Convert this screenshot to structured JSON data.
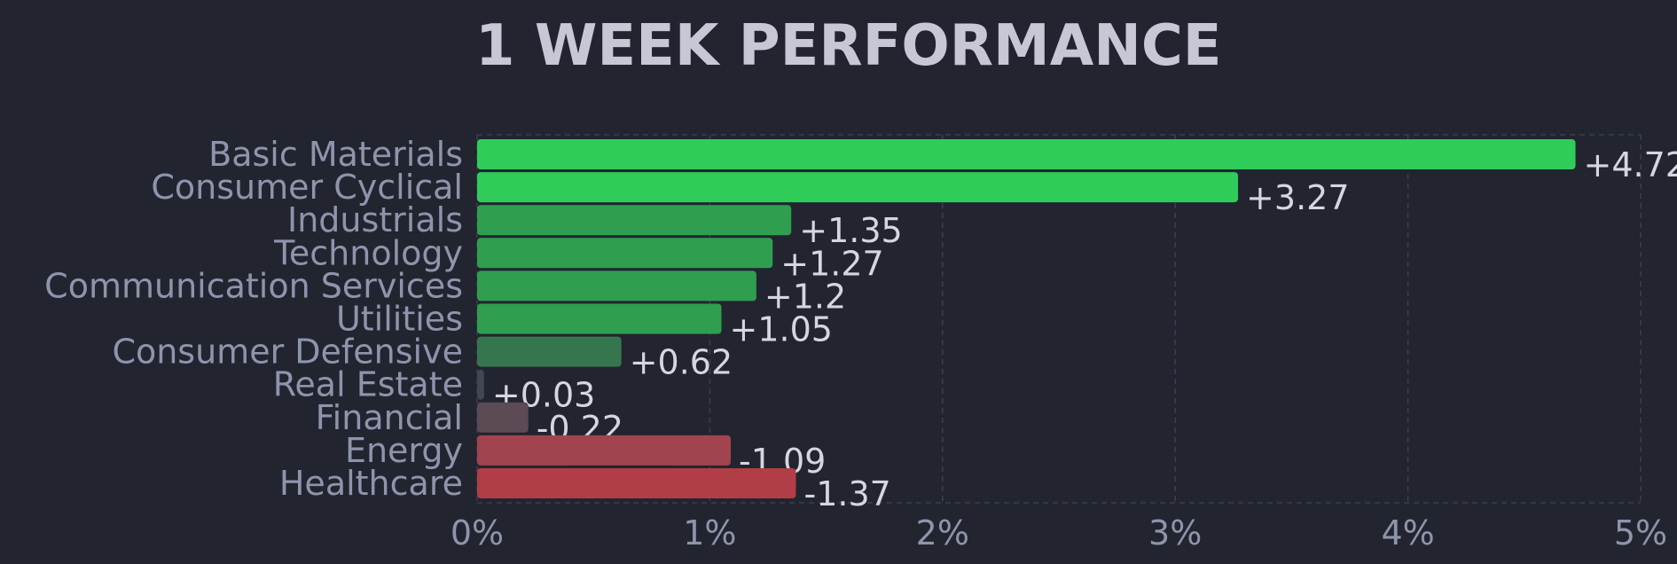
{
  "chart_data": {
    "type": "bar",
    "orientation": "horizontal",
    "title": "1 WEEK PERFORMANCE",
    "categories": [
      "Basic Materials",
      "Consumer Cyclical",
      "Industrials",
      "Technology",
      "Communication Services",
      "Utilities",
      "Consumer Defensive",
      "Real Estate",
      "Financial",
      "Energy",
      "Healthcare"
    ],
    "values": [
      4.72,
      3.27,
      1.35,
      1.27,
      1.2,
      1.05,
      0.62,
      0.03,
      -0.22,
      -1.09,
      -1.37
    ],
    "value_labels": [
      "+4.72",
      "+3.27",
      "+1.35",
      "+1.27",
      "+1.2",
      "+1.05",
      "+0.62",
      "+0.03",
      "-0.22",
      "-1.09",
      "-1.37"
    ],
    "bar_colors": [
      "#30cc5a",
      "#30cc5a",
      "#2f9e4f",
      "#2f9e4f",
      "#2f9e4f",
      "#2f9e4f",
      "#35764e",
      "#414554",
      "#5c4a55",
      "#a1444f",
      "#b13d46"
    ],
    "xlim": [
      0,
      5
    ],
    "xticks": [
      "0%",
      "1%",
      "2%",
      "3%",
      "4%",
      "5%"
    ],
    "bar_length": "absolute value",
    "grid": true,
    "legend": "none",
    "xlabel": "",
    "ylabel": ""
  }
}
